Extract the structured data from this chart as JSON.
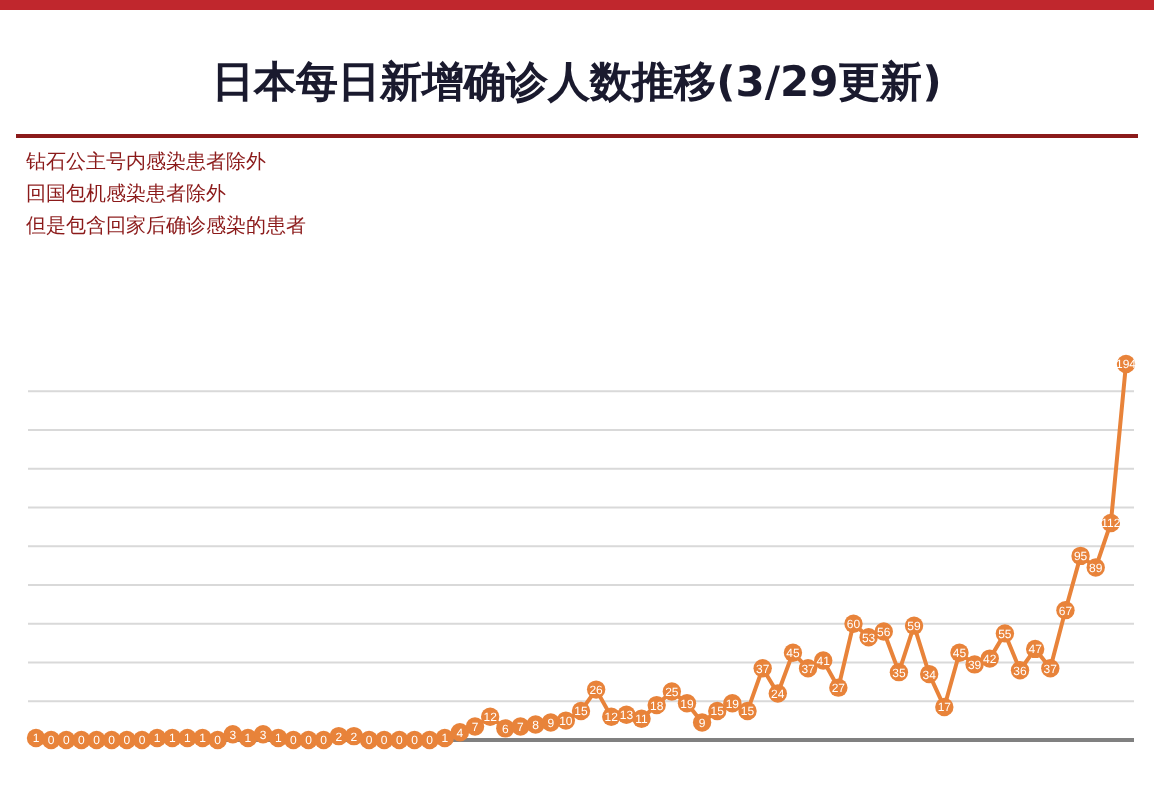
{
  "chart_data": {
    "type": "line",
    "title": "日本每日新增确诊人数推移(3/29更新)",
    "annotations": [
      "钻石公主号内感染患者除外",
      "回国包机感染患者除外",
      "但是包含回家后确诊感染的患者"
    ],
    "categories": [
      null,
      null,
      null,
      null,
      null,
      null,
      null,
      null,
      null,
      null,
      null,
      null,
      null,
      null,
      null,
      null,
      null,
      null,
      null,
      null,
      null,
      null,
      null,
      null,
      null,
      null,
      null,
      null,
      null,
      null,
      null,
      null,
      null,
      null,
      null,
      null,
      null,
      null,
      null,
      null,
      null,
      null,
      null,
      null,
      null,
      null,
      null,
      null,
      null,
      null,
      null,
      null,
      null,
      null,
      null,
      null,
      null,
      null,
      null,
      null,
      null,
      null,
      null,
      null,
      null,
      null,
      null,
      null,
      null,
      null,
      null,
      null,
      null
    ],
    "series": [
      {
        "color": "#e8833a",
        "values": [
          1,
          0,
          0,
          0,
          0,
          0,
          0,
          0,
          1,
          1,
          1,
          1,
          0,
          3,
          1,
          3,
          1,
          0,
          0,
          0,
          2,
          2,
          0,
          0,
          0,
          0,
          0,
          1,
          4,
          7,
          12,
          6,
          7,
          8,
          9,
          10,
          15,
          26,
          12,
          13,
          11,
          18,
          25,
          19,
          9,
          15,
          19,
          15,
          37,
          24,
          45,
          37,
          41,
          27,
          60,
          53,
          56,
          35,
          59,
          34,
          17,
          45,
          39,
          42,
          55,
          36,
          47,
          37,
          67,
          95,
          89,
          112,
          194
        ]
      }
    ],
    "grid": "y",
    "marker": "circle",
    "data_labels": true
  }
}
